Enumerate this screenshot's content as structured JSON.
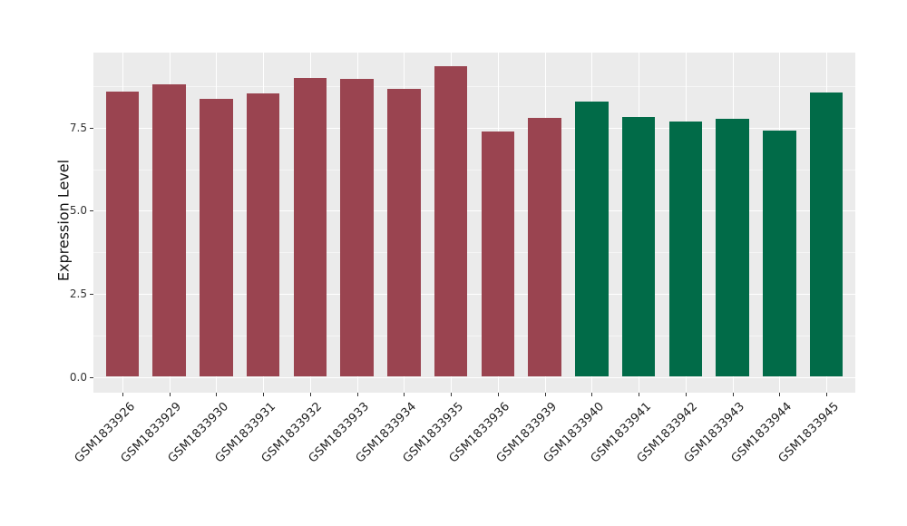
{
  "chart_data": {
    "type": "bar",
    "title": "",
    "xlabel": "",
    "ylabel": "Expression Level",
    "ylim": [
      0,
      9.76
    ],
    "y_tick_labels": [
      "0.0",
      "2.5",
      "5.0",
      "7.5"
    ],
    "y_tick_values": [
      0,
      2.5,
      5.0,
      7.5
    ],
    "y_minor_values": [
      1.25,
      3.75,
      6.25,
      8.75
    ],
    "grid": "on",
    "legend_position": "none",
    "categories": [
      "GSM1833926",
      "GSM1833929",
      "GSM1833930",
      "GSM1833931",
      "GSM1833932",
      "GSM1833933",
      "GSM1833934",
      "GSM1833935",
      "GSM1833936",
      "GSM1833939",
      "GSM1833940",
      "GSM1833941",
      "GSM1833942",
      "GSM1833943",
      "GSM1833944",
      "GSM1833945"
    ],
    "values": [
      8.59,
      8.8,
      8.37,
      8.54,
      9.01,
      8.96,
      8.68,
      9.34,
      7.39,
      7.8,
      8.3,
      7.82,
      7.69,
      7.76,
      7.42,
      8.55
    ],
    "bar_colors": [
      "#9A4450",
      "#9A4450",
      "#9A4450",
      "#9A4450",
      "#9A4450",
      "#9A4450",
      "#9A4450",
      "#9A4450",
      "#9A4450",
      "#9A4450",
      "#016B48",
      "#016B48",
      "#016B48",
      "#016B48",
      "#016B48",
      "#016B48"
    ],
    "groups": [
      {
        "color": "#9A4450",
        "count": 10
      },
      {
        "color": "#016B48",
        "count": 6
      }
    ],
    "style": {
      "panel_background": "#EBEBEB",
      "grid_major_color": "#FFFFFF",
      "grid_minor_color": "#F7F7F7",
      "tick_color": "#333333",
      "axis_text_color": "#1F1F1F",
      "figure_background": "#FFFFFF"
    }
  }
}
